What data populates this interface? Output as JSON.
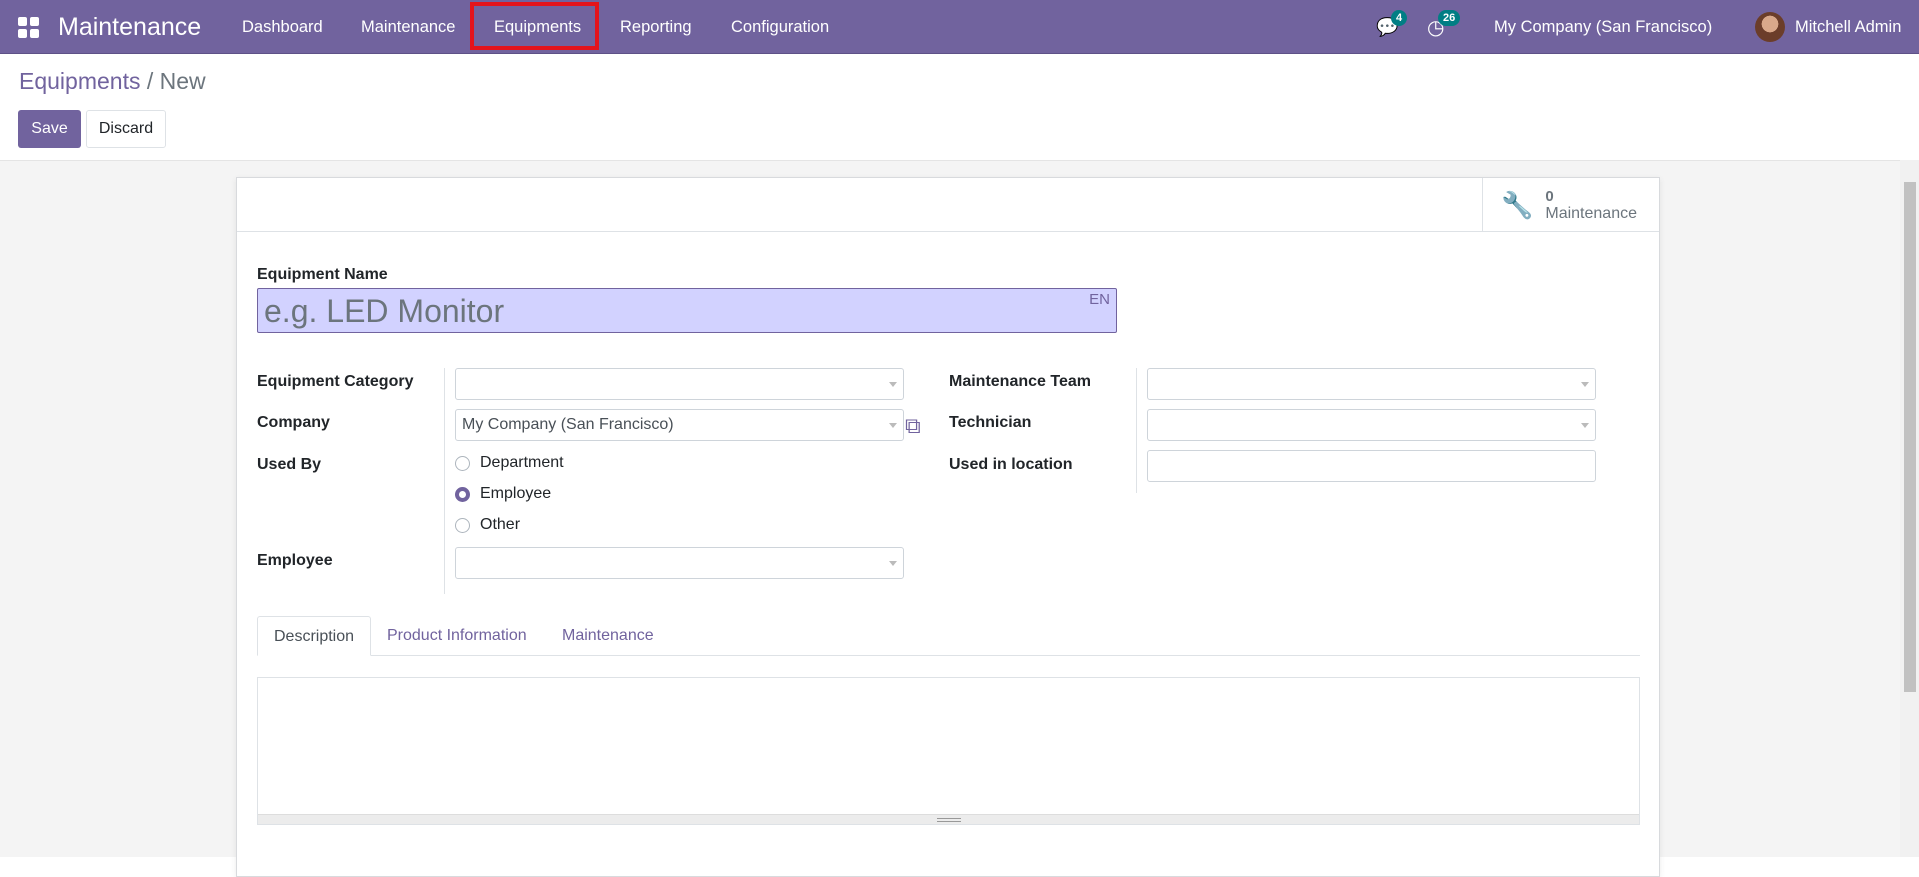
{
  "navbar": {
    "app_name": "Maintenance",
    "menu": [
      "Dashboard",
      "Maintenance",
      "Equipments",
      "Reporting",
      "Configuration"
    ],
    "highlighted": "Equipments",
    "messages_count": "4",
    "activities_count": "26",
    "company": "My Company (San Francisco)",
    "user": "Mitchell Admin",
    "color": "#71639e"
  },
  "breadcrumb": {
    "parent": "Equipments",
    "separator": "/",
    "current": "New"
  },
  "actions": {
    "save": "Save",
    "discard": "Discard"
  },
  "stat_button": {
    "count": "0",
    "label": "Maintenance",
    "icon": "wrench-icon"
  },
  "form": {
    "name_label": "Equipment Name",
    "name_placeholder": "e.g. LED Monitor",
    "lang": "EN",
    "category_label": "Equipment Category",
    "category_value": "",
    "company_label": "Company",
    "company_value": "My Company (San Francisco)",
    "used_by_label": "Used By",
    "used_by_options": [
      "Department",
      "Employee",
      "Other"
    ],
    "used_by_selected": "Employee",
    "employee_label": "Employee",
    "employee_value": "",
    "team_label": "Maintenance Team",
    "team_value": "",
    "technician_label": "Technician",
    "technician_value": "",
    "location_label": "Used in location",
    "location_value": ""
  },
  "tabs": [
    "Description",
    "Product Information",
    "Maintenance"
  ],
  "active_tab": "Description"
}
